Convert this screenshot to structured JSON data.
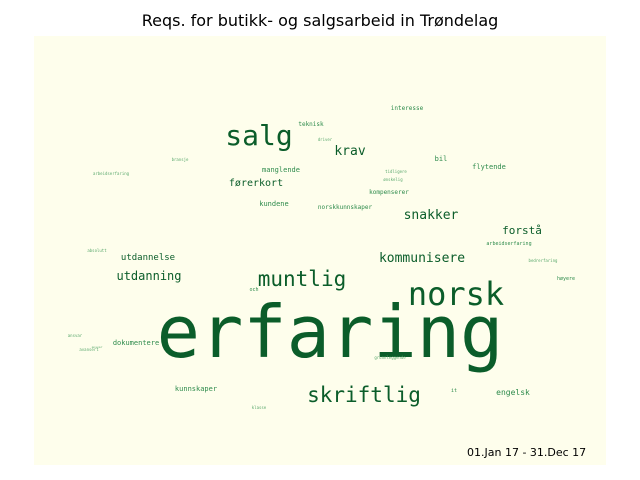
{
  "title": "Reqs. for butikk- og salgsarbeid in Trøndelag",
  "date_range": "01.Jan 17 - 31.Dec 17",
  "colors": {
    "panel_background": "#fefeec",
    "word_dark": "#0b5d2a",
    "word_medium": "#2e8b4c",
    "word_light": "#5aa86d"
  },
  "chart_data": {
    "type": "wordcloud",
    "title": "Reqs. for butikk- og salgsarbeid in Trøndelag",
    "annotation": "01.Jan 17 - 31.Dec 17",
    "words": [
      {
        "text": "erfaring",
        "weight": 100
      },
      {
        "text": "norsk",
        "weight": 42
      },
      {
        "text": "salg",
        "weight": 34
      },
      {
        "text": "muntlig",
        "weight": 30
      },
      {
        "text": "skriftlig",
        "weight": 29
      },
      {
        "text": "kommunisere",
        "weight": 20
      },
      {
        "text": "krav",
        "weight": 19
      },
      {
        "text": "snakker",
        "weight": 19
      },
      {
        "text": "utdanning",
        "weight": 18
      },
      {
        "text": "forstå",
        "weight": 16
      },
      {
        "text": "utdannelse",
        "weight": 14
      },
      {
        "text": "førerkort",
        "weight": 14
      },
      {
        "text": "engelsk",
        "weight": 12
      },
      {
        "text": "kunnskaper",
        "weight": 11
      },
      {
        "text": "flytende",
        "weight": 11
      },
      {
        "text": "dokumentere",
        "weight": 11
      },
      {
        "text": "manglende",
        "weight": 11
      },
      {
        "text": "bil",
        "weight": 10
      },
      {
        "text": "kundene",
        "weight": 10
      },
      {
        "text": "interesse",
        "weight": 9
      },
      {
        "text": "norskkunnskaper",
        "weight": 9
      },
      {
        "text": "kompenserer",
        "weight": 9
      },
      {
        "text": "teknisk",
        "weight": 9
      },
      {
        "text": "arbeidserfaring",
        "weight": 8
      },
      {
        "text": "høyere",
        "weight": 8
      },
      {
        "text": "och",
        "weight": 8
      },
      {
        "text": "it",
        "weight": 8
      },
      {
        "text": "klasse",
        "weight": 7
      },
      {
        "text": "grunnleggende",
        "weight": 6
      },
      {
        "text": "bransje",
        "weight": 6
      },
      {
        "text": "arbeidserfaring",
        "weight": 5
      },
      {
        "text": "tidligere",
        "weight": 5
      },
      {
        "text": "ønskelig",
        "weight": 5
      },
      {
        "text": "driver",
        "weight": 5
      },
      {
        "text": "ansvar",
        "weight": 5
      },
      {
        "text": "absolutt",
        "weight": 5
      },
      {
        "text": "bedrerfaring",
        "weight": 4
      },
      {
        "text": "avansert",
        "weight": 4
      },
      {
        "text": "ansvar",
        "weight": 4
      }
    ]
  }
}
